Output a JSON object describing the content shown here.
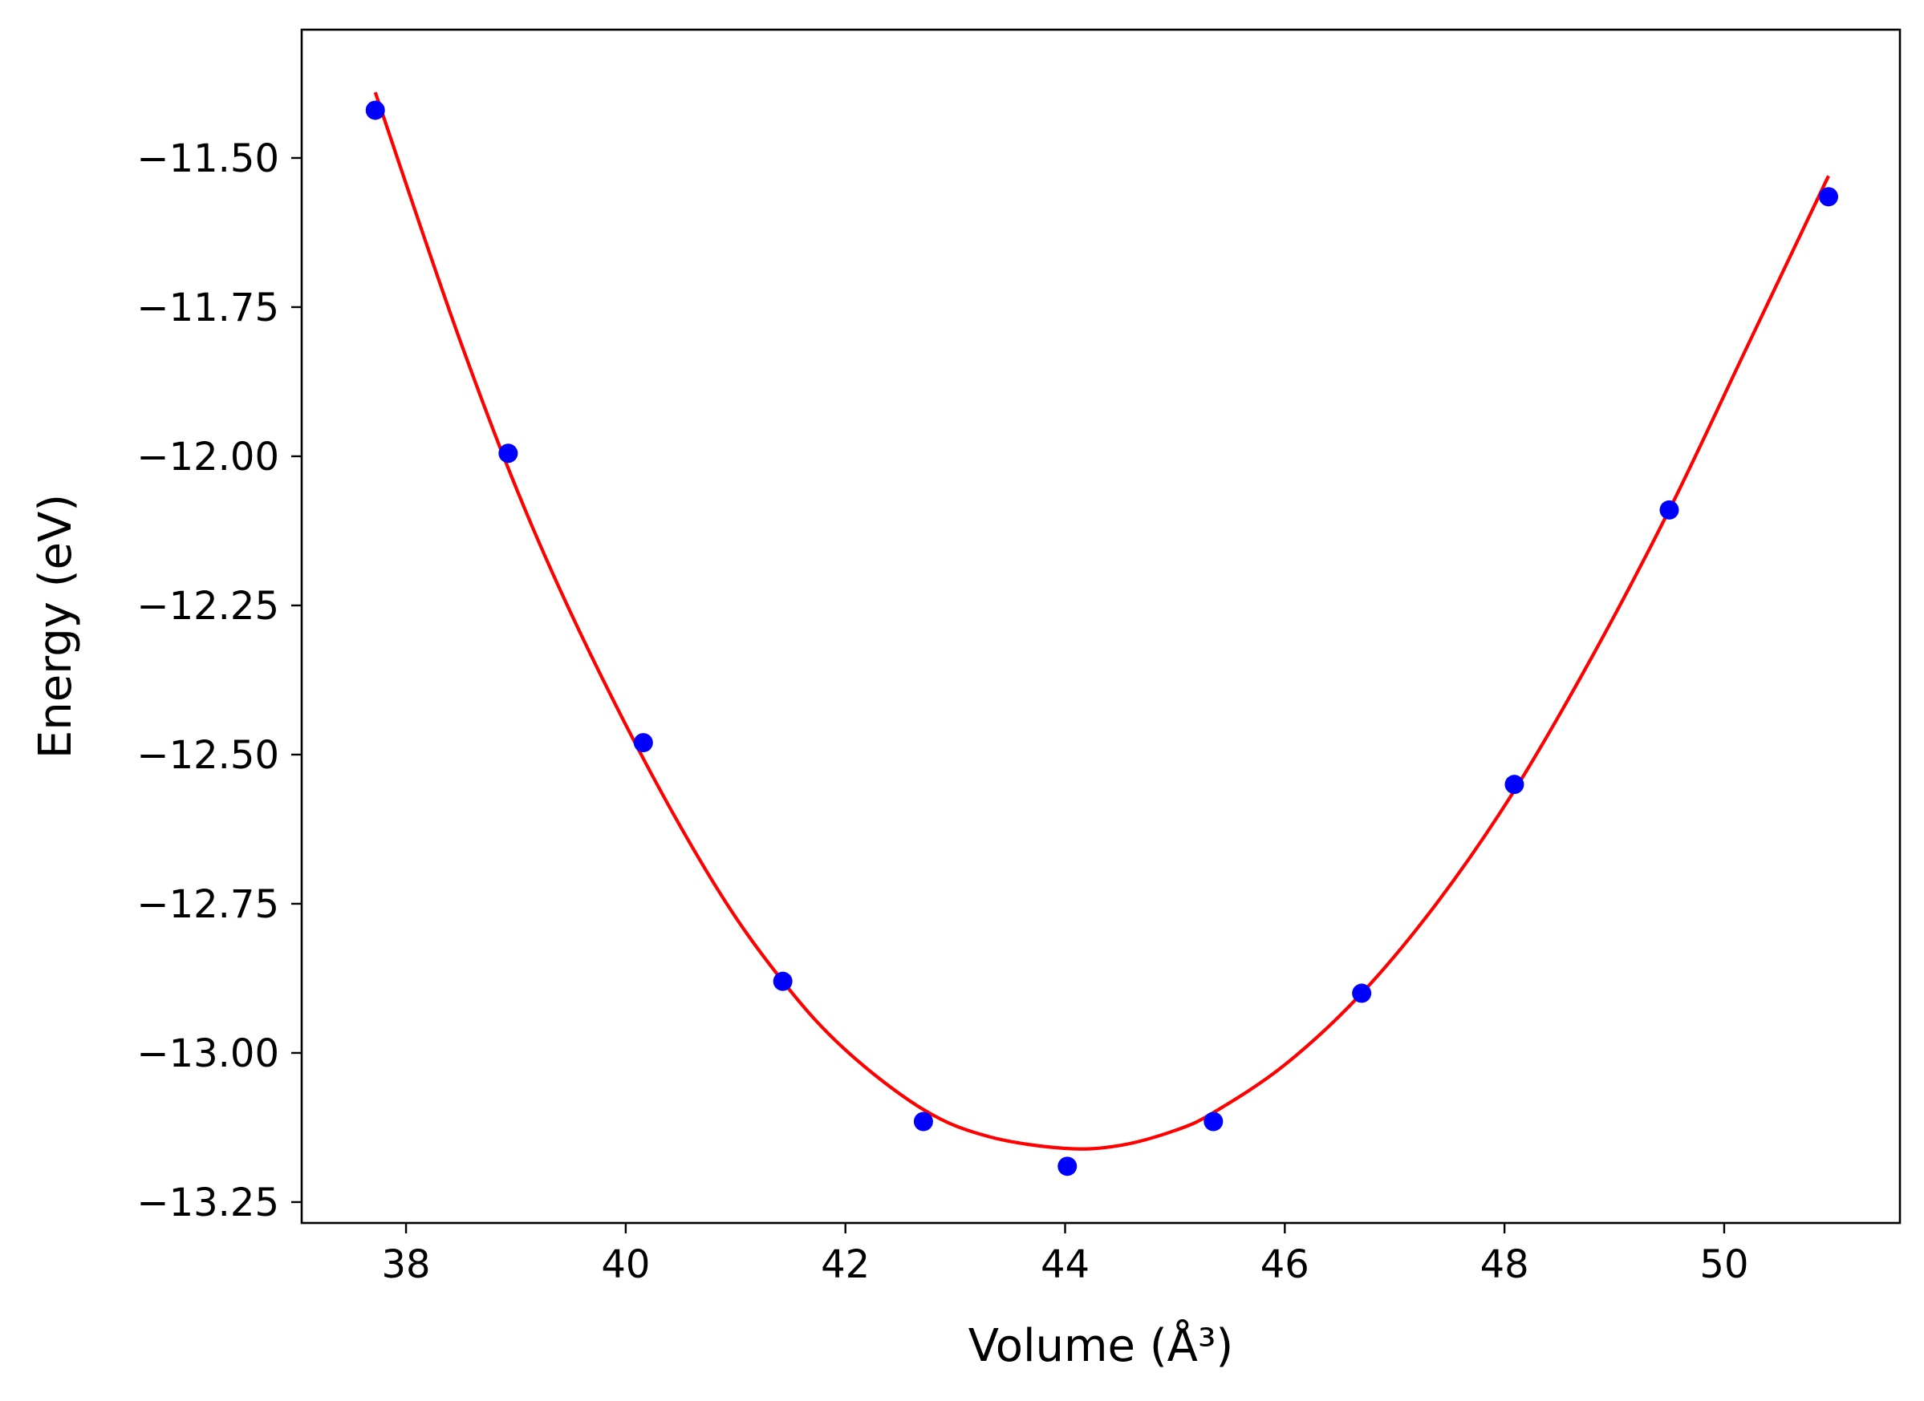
{
  "chart_data": {
    "type": "scatter",
    "title": "",
    "xlabel": "Volume (Å³)",
    "ylabel": "Energy (eV)",
    "xlim": [
      37.05,
      51.6
    ],
    "ylim": [
      -13.285,
      -11.285
    ],
    "xticks": [
      38,
      40,
      42,
      44,
      46,
      48,
      50
    ],
    "xtick_labels": [
      "38",
      "40",
      "42",
      "44",
      "46",
      "48",
      "50"
    ],
    "yticks": [
      -11.5,
      -11.75,
      -12.0,
      -12.25,
      -12.5,
      -12.75,
      -13.0,
      -13.25
    ],
    "ytick_labels": [
      "−11.50",
      "−11.75",
      "−12.00",
      "−12.25",
      "−12.50",
      "−12.75",
      "−13.00",
      "−13.25"
    ],
    "grid": false,
    "legend": "none",
    "series": [
      {
        "kind": "scatter",
        "color": "#0000ff",
        "x": [
          37.72,
          38.93,
          40.16,
          41.43,
          42.71,
          44.02,
          45.35,
          46.7,
          48.09,
          49.5,
          50.95
        ],
        "y": [
          -11.42,
          -11.995,
          -12.48,
          -12.88,
          -13.115,
          -13.19,
          -13.115,
          -12.9,
          -12.55,
          -12.09,
          -11.565
        ]
      },
      {
        "kind": "line",
        "color": "#ff0000",
        "x": [
          37.72,
          38.5,
          39.2,
          40.0,
          40.8,
          41.43,
          42.0,
          42.71,
          43.3,
          44.0,
          44.5,
          45.0,
          45.35,
          46.0,
          46.7,
          47.4,
          48.09,
          48.8,
          49.5,
          50.2,
          50.95
        ],
        "y": [
          -11.39,
          -11.81,
          -12.14,
          -12.45,
          -12.715,
          -12.88,
          -12.995,
          -13.095,
          -13.14,
          -13.16,
          -13.155,
          -13.13,
          -13.1,
          -13.02,
          -12.9,
          -12.745,
          -12.56,
          -12.335,
          -12.09,
          -11.82,
          -11.53
        ]
      }
    ]
  }
}
